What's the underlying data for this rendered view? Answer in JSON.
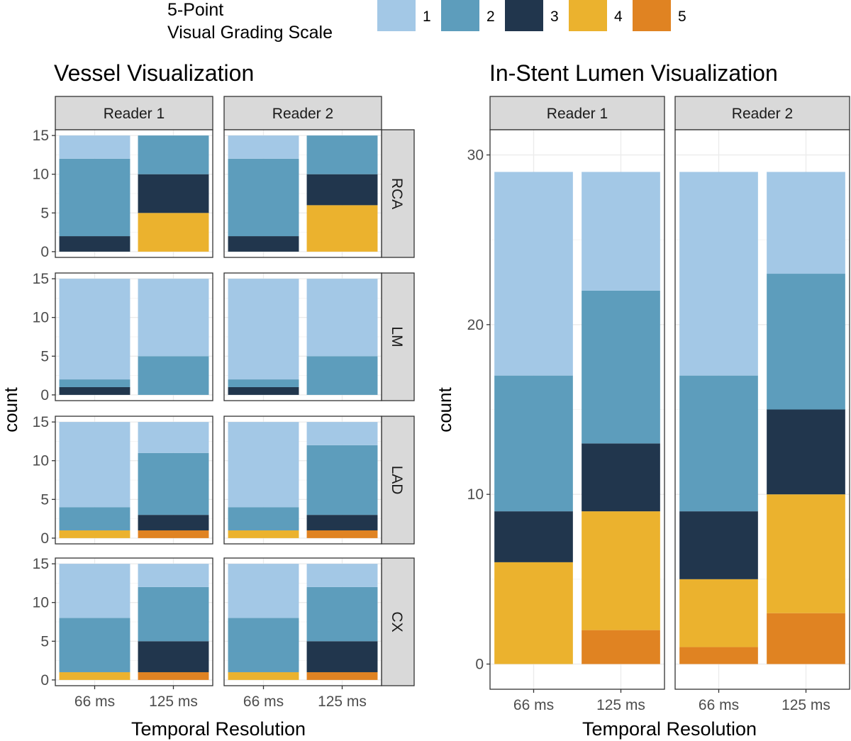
{
  "legend": {
    "title_line1": "5-Point",
    "title_line2": "Visual Grading Scale",
    "items": [
      {
        "label": "1",
        "color": "#a3c8e6"
      },
      {
        "label": "2",
        "color": "#5d9dbc"
      },
      {
        "label": "3",
        "color": "#21364d"
      },
      {
        "label": "4",
        "color": "#ebb22e"
      },
      {
        "label": "5",
        "color": "#e08322"
      }
    ]
  },
  "chart_data": [
    {
      "type": "bar",
      "stacked": true,
      "title": "Vessel Visualization",
      "xlabel": "Temporal Resolution",
      "ylabel": "count",
      "categories": [
        "66 ms",
        "125 ms"
      ],
      "col_facets": [
        "Reader 1",
        "Reader 2"
      ],
      "row_facets": [
        "RCA",
        "LM",
        "LAD",
        "CX"
      ],
      "ylim": [
        0,
        15
      ],
      "yticks": [
        "0",
        "5",
        "10",
        "15"
      ],
      "panels": [
        {
          "reader": "Reader 1",
          "vessel": "RCA",
          "bars": [
            {
              "x": "66 ms",
              "grades": {
                "3": 2,
                "2": 10,
                "1": 3
              }
            },
            {
              "x": "125 ms",
              "grades": {
                "4": 5,
                "3": 5,
                "2": 5
              }
            }
          ]
        },
        {
          "reader": "Reader 2",
          "vessel": "RCA",
          "bars": [
            {
              "x": "66 ms",
              "grades": {
                "3": 2,
                "2": 10,
                "1": 3
              }
            },
            {
              "x": "125 ms",
              "grades": {
                "4": 6,
                "3": 4,
                "2": 5
              }
            }
          ]
        },
        {
          "reader": "Reader 1",
          "vessel": "LM",
          "bars": [
            {
              "x": "66 ms",
              "grades": {
                "3": 1,
                "2": 1,
                "1": 13
              }
            },
            {
              "x": "125 ms",
              "grades": {
                "2": 5,
                "1": 10
              }
            }
          ]
        },
        {
          "reader": "Reader 2",
          "vessel": "LM",
          "bars": [
            {
              "x": "66 ms",
              "grades": {
                "3": 1,
                "2": 1,
                "1": 13
              }
            },
            {
              "x": "125 ms",
              "grades": {
                "2": 5,
                "1": 10
              }
            }
          ]
        },
        {
          "reader": "Reader 1",
          "vessel": "LAD",
          "bars": [
            {
              "x": "66 ms",
              "grades": {
                "4": 1,
                "2": 3,
                "1": 11
              }
            },
            {
              "x": "125 ms",
              "grades": {
                "5": 1,
                "3": 2,
                "2": 8,
                "1": 4
              }
            }
          ]
        },
        {
          "reader": "Reader 2",
          "vessel": "LAD",
          "bars": [
            {
              "x": "66 ms",
              "grades": {
                "4": 1,
                "2": 3,
                "1": 11
              }
            },
            {
              "x": "125 ms",
              "grades": {
                "5": 1,
                "3": 2,
                "2": 9,
                "1": 3
              }
            }
          ]
        },
        {
          "reader": "Reader 1",
          "vessel": "CX",
          "bars": [
            {
              "x": "66 ms",
              "grades": {
                "4": 1,
                "2": 7,
                "1": 7
              }
            },
            {
              "x": "125 ms",
              "grades": {
                "5": 1,
                "3": 4,
                "2": 7,
                "1": 3
              }
            }
          ]
        },
        {
          "reader": "Reader 2",
          "vessel": "CX",
          "bars": [
            {
              "x": "66 ms",
              "grades": {
                "4": 1,
                "2": 7,
                "1": 7
              }
            },
            {
              "x": "125 ms",
              "grades": {
                "5": 1,
                "3": 4,
                "2": 7,
                "1": 3
              }
            }
          ]
        }
      ]
    },
    {
      "type": "bar",
      "stacked": true,
      "title": "In-Stent Lumen Visualization",
      "xlabel": "Temporal Resolution",
      "ylabel": "count",
      "categories": [
        "66 ms",
        "125 ms"
      ],
      "col_facets": [
        "Reader 1",
        "Reader 2"
      ],
      "ylim": [
        0,
        30
      ],
      "yticks": [
        "0",
        "10",
        "20",
        "30"
      ],
      "panels": [
        {
          "reader": "Reader 1",
          "bars": [
            {
              "x": "66 ms",
              "grades": {
                "4": 6,
                "3": 3,
                "2": 8,
                "1": 12
              }
            },
            {
              "x": "125 ms",
              "grades": {
                "5": 2,
                "4": 7,
                "3": 4,
                "2": 9,
                "1": 7
              }
            }
          ]
        },
        {
          "reader": "Reader 2",
          "bars": [
            {
              "x": "66 ms",
              "grades": {
                "5": 1,
                "4": 4,
                "3": 4,
                "2": 8,
                "1": 12
              }
            },
            {
              "x": "125 ms",
              "grades": {
                "5": 3,
                "4": 7,
                "3": 5,
                "2": 8,
                "1": 6
              }
            }
          ]
        }
      ]
    }
  ]
}
